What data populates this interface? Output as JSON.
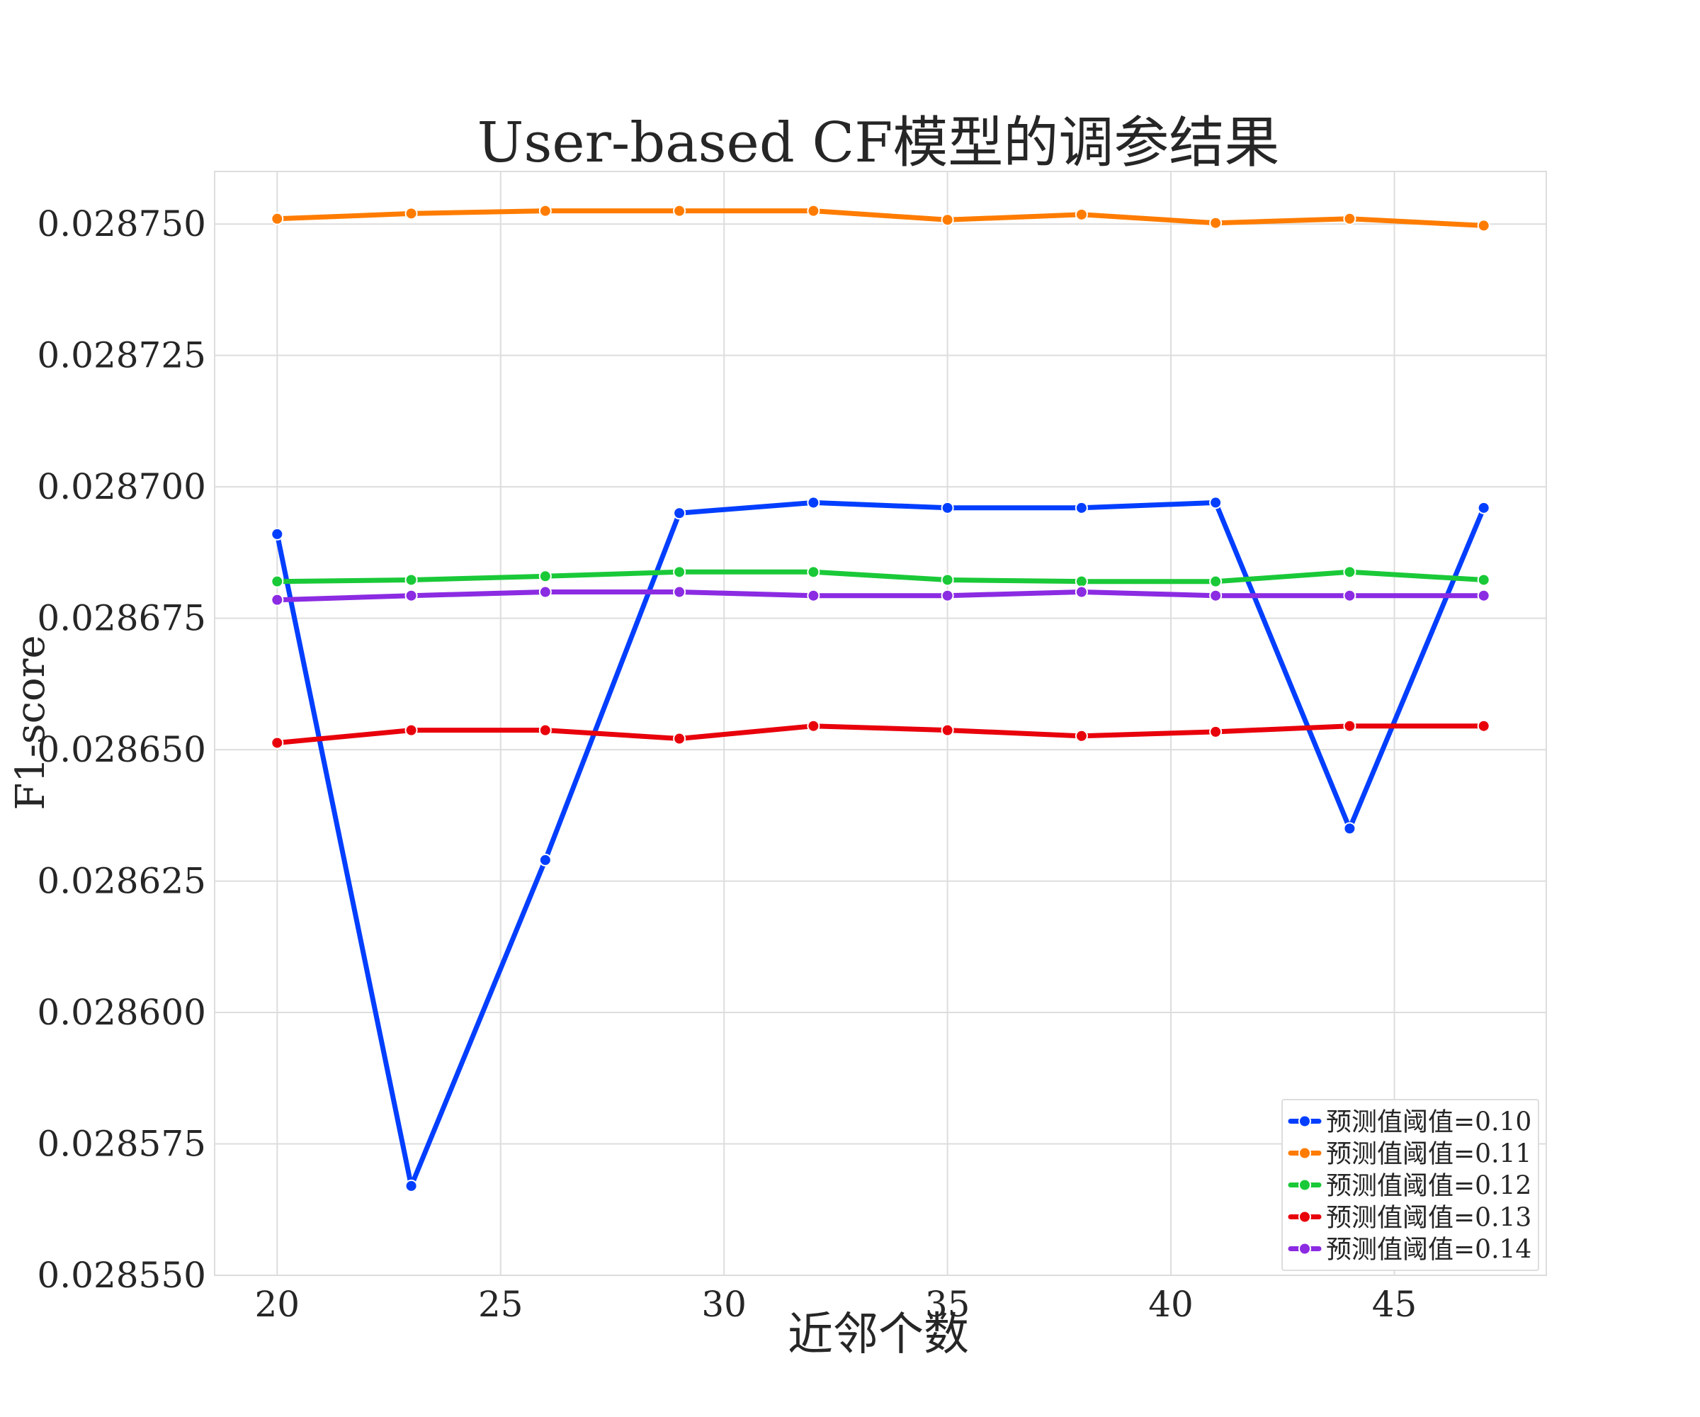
{
  "chart_data": {
    "type": "line",
    "title": "User-based CF模型的调参结果",
    "xlabel": "近邻个数",
    "ylabel": "F1-score",
    "x": [
      20,
      23,
      26,
      29,
      32,
      35,
      38,
      41,
      44,
      47
    ],
    "xlim": [
      18.6,
      48.4
    ],
    "ylim": [
      0.02855,
      0.02876
    ],
    "xticks": [
      20,
      25,
      30,
      35,
      40,
      45
    ],
    "yticks": [
      0.02855,
      0.028575,
      0.0286,
      0.028625,
      0.02865,
      0.028675,
      0.0287,
      0.028725,
      0.02875
    ],
    "ytick_labels": [
      "0.028550",
      "0.028575",
      "0.028600",
      "0.028625",
      "0.028650",
      "0.028675",
      "0.028700",
      "0.028725",
      "0.028750"
    ],
    "grid": true,
    "legend_position": "lower-right",
    "series": [
      {
        "name": "预测值阈值=0.10",
        "color": "#023eff",
        "values": [
          0.028691,
          0.028567,
          0.028629,
          0.028695,
          0.028697,
          0.028696,
          0.028696,
          0.028697,
          0.028635,
          0.028696
        ]
      },
      {
        "name": "预测值阈值=0.11",
        "color": "#ff7c00",
        "values": [
          0.028751,
          0.028752,
          0.0287525,
          0.0287525,
          0.0287525,
          0.0287508,
          0.0287518,
          0.0287502,
          0.028751,
          0.0287497
        ]
      },
      {
        "name": "预测值阈值=0.12",
        "color": "#1ac938",
        "values": [
          0.028682,
          0.0286823,
          0.028683,
          0.0286838,
          0.0286838,
          0.0286823,
          0.028682,
          0.028682,
          0.0286838,
          0.0286823
        ]
      },
      {
        "name": "预测值阈值=0.13",
        "color": "#e8000b",
        "values": [
          0.0286513,
          0.0286537,
          0.0286537,
          0.0286521,
          0.0286545,
          0.0286537,
          0.0286526,
          0.0286534,
          0.0286545,
          0.0286545
        ]
      },
      {
        "name": "预测值阈值=0.14",
        "color": "#8b2be2",
        "values": [
          0.0286785,
          0.0286793,
          0.02868,
          0.02868,
          0.0286793,
          0.0286793,
          0.02868,
          0.0286793,
          0.0286793,
          0.0286793
        ]
      }
    ]
  }
}
